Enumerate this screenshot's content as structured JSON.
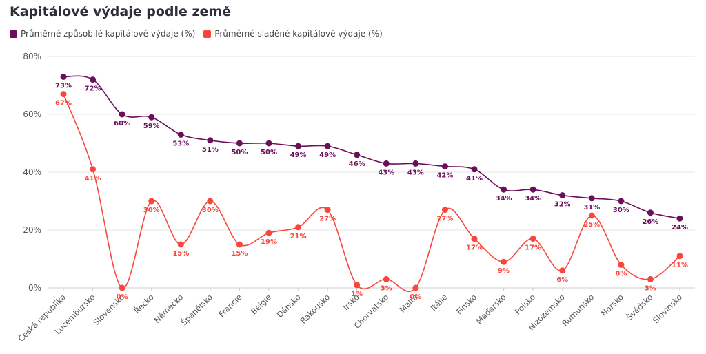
{
  "title": "Kapitálové výdaje podle země",
  "colors": {
    "series1": "#6b0f5b",
    "series2": "#f9463d"
  },
  "chart_data": {
    "type": "line",
    "title": "Kapitálové výdaje podle země",
    "xlabel": "",
    "ylabel": "",
    "ylim": [
      0,
      80
    ],
    "yticks": [
      "0%",
      "20%",
      "40%",
      "60%",
      "80%"
    ],
    "grid": true,
    "legend": "top-left",
    "categories": [
      "Česká republika",
      "Lucembursko",
      "Slovensko",
      "Řecko",
      "Německo",
      "Španělsko",
      "Francie",
      "Belgie",
      "Dánsko",
      "Rakousko",
      "Irsko",
      "Chorvatsko",
      "Malta",
      "Itálie",
      "Finsko",
      "Maďarsko",
      "Polsko",
      "Nizozemsko",
      "Rumunsko",
      "Norsko",
      "Švédsko",
      "Slovinsko"
    ],
    "series": [
      {
        "name": "Průměrné způsobilé kapitálové výdaje (%)",
        "values": [
          73,
          72,
          60,
          59,
          53,
          51,
          50,
          50,
          49,
          49,
          46,
          43,
          43,
          42,
          41,
          34,
          34,
          32,
          31,
          30,
          26,
          24
        ]
      },
      {
        "name": "Průměrné sladěné kapitálové výdaje (%)",
        "values": [
          67,
          41,
          0,
          30,
          15,
          30,
          15,
          19,
          21,
          27,
          1,
          3,
          0,
          27,
          17,
          9,
          17,
          6,
          25,
          8,
          3,
          11
        ]
      }
    ]
  }
}
